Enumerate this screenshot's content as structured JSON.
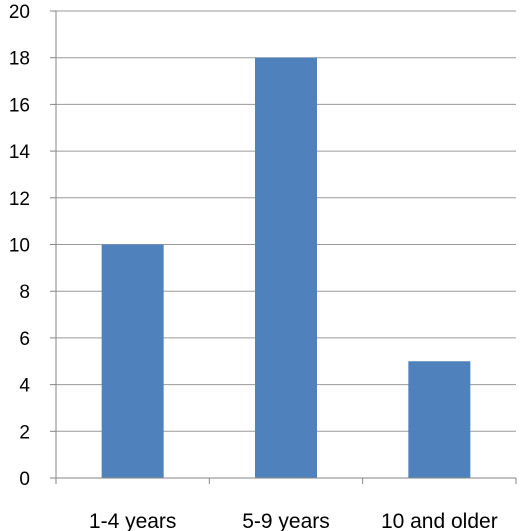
{
  "chart_data": {
    "type": "bar",
    "categories": [
      "1-4 years",
      "5-9 years",
      "10 and older"
    ],
    "values": [
      10,
      18,
      5
    ],
    "title": "",
    "xlabel": "",
    "ylabel": "",
    "ylim": [
      0,
      20
    ],
    "yticks": [
      "0",
      "2",
      "4",
      "6",
      "8",
      "10",
      "12",
      "14",
      "16",
      "18",
      "20"
    ],
    "grid": true,
    "legend": "none",
    "bar_color": "#4f81bd"
  }
}
